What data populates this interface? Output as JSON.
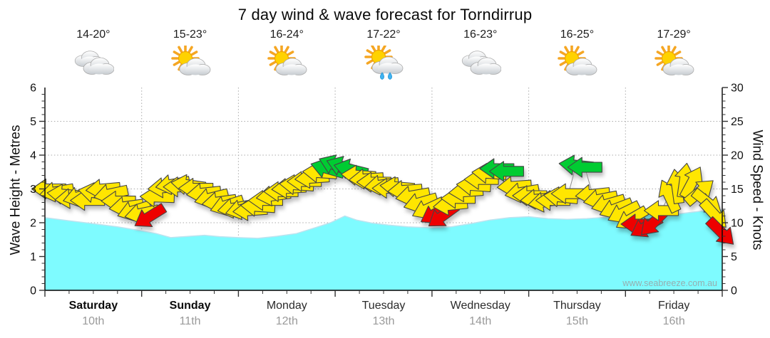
{
  "title": "7 day wind & wave forecast for Torndirrup",
  "watermark": "www.seabreeze.com.au",
  "days": [
    {
      "name": "Saturday",
      "date": "10th",
      "temp": "14-20°",
      "icon": "cloudy",
      "weekend": true
    },
    {
      "name": "Sunday",
      "date": "11th",
      "temp": "15-23°",
      "icon": "partly-sunny",
      "weekend": true
    },
    {
      "name": "Monday",
      "date": "12th",
      "temp": "16-24°",
      "icon": "partly-sunny",
      "weekend": false
    },
    {
      "name": "Tuesday",
      "date": "13th",
      "temp": "17-22°",
      "icon": "showers",
      "weekend": false
    },
    {
      "name": "Wednesday",
      "date": "14th",
      "temp": "16-23°",
      "icon": "cloudy",
      "weekend": false
    },
    {
      "name": "Thursday",
      "date": "15th",
      "temp": "16-25°",
      "icon": "partly-sunny",
      "weekend": false
    },
    {
      "name": "Friday",
      "date": "16th",
      "temp": "17-29°",
      "icon": "partly-sunny",
      "weekend": false
    }
  ],
  "colors": {
    "wave_fill": "#7EFBFF",
    "wave_edge": "#BCE3EF",
    "arrow_yellow": "#FFE600",
    "arrow_green": "#00CC33",
    "arrow_red": "#EE0000",
    "arrow_outline": "#444444",
    "grid": "#AAAAAA",
    "axis": "#000000",
    "watermark_text": "#9C9C9C"
  },
  "chart_data": {
    "type": "area+wind-arrows",
    "title": "7 day wind & wave forecast for Torndirrup",
    "categories": [
      "Saturday 10th",
      "Sunday 11th",
      "Monday 12th",
      "Tuesday 13th",
      "Wednesday 14th",
      "Thursday 15th",
      "Friday 16th"
    ],
    "left_axis": {
      "label": "Wave Height - Metres",
      "range": [
        0,
        6
      ],
      "ticks": [
        0,
        1,
        2,
        3,
        4,
        5,
        6
      ]
    },
    "right_axis": {
      "label": "Wind Speed - Knots",
      "range": [
        0,
        30
      ],
      "ticks": [
        0,
        5,
        10,
        15,
        20,
        25,
        30
      ]
    },
    "grid": true,
    "wave_height_m": {
      "name": "Wave Height (metres)",
      "points": [
        [
          0.0,
          2.15
        ],
        [
          0.25,
          2.06
        ],
        [
          0.5,
          1.97
        ],
        [
          0.75,
          1.88
        ],
        [
          1.0,
          1.76
        ],
        [
          1.15,
          1.68
        ],
        [
          1.3,
          1.56
        ],
        [
          1.5,
          1.6
        ],
        [
          1.65,
          1.63
        ],
        [
          1.8,
          1.59
        ],
        [
          2.0,
          1.56
        ],
        [
          2.2,
          1.54
        ],
        [
          2.4,
          1.6
        ],
        [
          2.6,
          1.68
        ],
        [
          2.8,
          1.86
        ],
        [
          2.95,
          2.0
        ],
        [
          3.1,
          2.2
        ],
        [
          3.22,
          2.08
        ],
        [
          3.38,
          1.99
        ],
        [
          3.55,
          1.93
        ],
        [
          3.75,
          1.88
        ],
        [
          4.0,
          1.85
        ],
        [
          4.2,
          1.88
        ],
        [
          4.4,
          1.97
        ],
        [
          4.6,
          2.08
        ],
        [
          4.8,
          2.15
        ],
        [
          5.0,
          2.18
        ],
        [
          5.2,
          2.12
        ],
        [
          5.4,
          2.1
        ],
        [
          5.6,
          2.12
        ],
        [
          5.8,
          2.16
        ],
        [
          6.0,
          2.18
        ],
        [
          6.2,
          2.25
        ],
        [
          6.4,
          2.21
        ],
        [
          6.6,
          2.28
        ],
        [
          6.8,
          2.35
        ],
        [
          7.0,
          2.38
        ]
      ]
    },
    "wind_arrows": {
      "name": "Wind Speed (knots)",
      "note": "each arrow = [day_fraction, knots, direction_deg_cw_0_points_right, color y|g|r]",
      "arrows": [
        [
          0.04,
          15.0,
          180,
          "y"
        ],
        [
          0.12,
          14.6,
          170,
          "y"
        ],
        [
          0.2,
          14.2,
          185,
          "y"
        ],
        [
          0.28,
          13.6,
          175,
          "y"
        ],
        [
          0.36,
          13.9,
          165,
          "y"
        ],
        [
          0.44,
          13.3,
          180,
          "y"
        ],
        [
          0.52,
          14.4,
          190,
          "y"
        ],
        [
          0.6,
          15.0,
          175,
          "y"
        ],
        [
          0.68,
          14.3,
          168,
          "y"
        ],
        [
          0.76,
          13.2,
          180,
          "y"
        ],
        [
          0.84,
          12.4,
          172,
          "y"
        ],
        [
          0.92,
          11.8,
          162,
          "y"
        ],
        [
          1.0,
          11.4,
          168,
          "y"
        ],
        [
          1.08,
          10.9,
          148,
          "r"
        ],
        [
          1.16,
          13.8,
          182,
          "y"
        ],
        [
          1.24,
          15.2,
          175,
          "y"
        ],
        [
          1.32,
          15.7,
          170,
          "y"
        ],
        [
          1.4,
          15.3,
          180,
          "y"
        ],
        [
          1.48,
          15.6,
          188,
          "y"
        ],
        [
          1.56,
          15.1,
          180,
          "y"
        ],
        [
          1.64,
          14.4,
          174,
          "y"
        ],
        [
          1.72,
          13.7,
          166,
          "y"
        ],
        [
          1.8,
          13.1,
          172,
          "y"
        ],
        [
          1.88,
          12.6,
          162,
          "y"
        ],
        [
          1.96,
          12.2,
          170,
          "y"
        ],
        [
          2.04,
          12.0,
          166,
          "y"
        ],
        [
          2.12,
          11.8,
          176,
          "y"
        ],
        [
          2.2,
          12.4,
          184,
          "y"
        ],
        [
          2.28,
          13.3,
          180,
          "y"
        ],
        [
          2.36,
          14.0,
          172,
          "y"
        ],
        [
          2.44,
          14.6,
          180,
          "y"
        ],
        [
          2.52,
          15.1,
          176,
          "y"
        ],
        [
          2.6,
          15.6,
          184,
          "y"
        ],
        [
          2.68,
          16.1,
          180,
          "y"
        ],
        [
          2.76,
          16.6,
          176,
          "y"
        ],
        [
          2.84,
          17.4,
          184,
          "y"
        ],
        [
          2.92,
          18.0,
          196,
          "g"
        ],
        [
          3.0,
          18.5,
          202,
          "g"
        ],
        [
          3.08,
          18.3,
          200,
          "g"
        ],
        [
          3.16,
          17.9,
          194,
          "g"
        ],
        [
          3.24,
          17.0,
          184,
          "y"
        ],
        [
          3.32,
          16.5,
          176,
          "y"
        ],
        [
          3.4,
          16.0,
          180,
          "y"
        ],
        [
          3.48,
          15.6,
          172,
          "y"
        ],
        [
          3.56,
          15.1,
          180,
          "y"
        ],
        [
          3.64,
          15.3,
          185,
          "y"
        ],
        [
          3.72,
          14.8,
          176,
          "y"
        ],
        [
          3.8,
          14.0,
          170,
          "y"
        ],
        [
          3.88,
          13.0,
          164,
          "y"
        ],
        [
          3.96,
          12.1,
          155,
          "y"
        ],
        [
          4.04,
          11.4,
          150,
          "r"
        ],
        [
          4.11,
          11.0,
          144,
          "r"
        ],
        [
          4.19,
          12.6,
          174,
          "y"
        ],
        [
          4.27,
          13.6,
          180,
          "y"
        ],
        [
          4.35,
          14.6,
          176,
          "y"
        ],
        [
          4.43,
          15.5,
          184,
          "y"
        ],
        [
          4.51,
          16.4,
          180,
          "y"
        ],
        [
          4.59,
          17.3,
          184,
          "y"
        ],
        [
          4.67,
          18.0,
          180,
          "g"
        ],
        [
          4.77,
          17.6,
          180,
          "g"
        ],
        [
          4.85,
          15.4,
          176,
          "y"
        ],
        [
          4.93,
          14.5,
          170,
          "y"
        ],
        [
          5.01,
          14.0,
          180,
          "y"
        ],
        [
          5.09,
          13.5,
          175,
          "y"
        ],
        [
          5.17,
          13.1,
          170,
          "y"
        ],
        [
          5.25,
          13.3,
          180,
          "y"
        ],
        [
          5.33,
          13.8,
          186,
          "y"
        ],
        [
          5.41,
          14.3,
          180,
          "y"
        ],
        [
          5.49,
          18.5,
          186,
          "g"
        ],
        [
          5.58,
          18.2,
          180,
          "g"
        ],
        [
          5.66,
          14.2,
          174,
          "y"
        ],
        [
          5.74,
          13.5,
          169,
          "y"
        ],
        [
          5.82,
          12.8,
          164,
          "y"
        ],
        [
          5.9,
          12.1,
          159,
          "y"
        ],
        [
          5.98,
          11.5,
          154,
          "y"
        ],
        [
          6.06,
          10.6,
          150,
          "y"
        ],
        [
          6.13,
          9.8,
          180,
          "r"
        ],
        [
          6.21,
          9.4,
          150,
          "r"
        ],
        [
          6.29,
          10.0,
          135,
          "r"
        ],
        [
          6.37,
          11.8,
          180,
          "y"
        ],
        [
          6.45,
          14.0,
          245,
          "y"
        ],
        [
          6.53,
          15.4,
          262,
          "y"
        ],
        [
          6.61,
          16.3,
          278,
          "y"
        ],
        [
          6.69,
          16.0,
          298,
          "y"
        ],
        [
          6.77,
          14.6,
          320,
          "y"
        ],
        [
          6.85,
          13.0,
          38,
          "y"
        ],
        [
          6.92,
          11.2,
          48,
          "y"
        ],
        [
          6.99,
          8.6,
          45,
          "r"
        ]
      ]
    }
  }
}
